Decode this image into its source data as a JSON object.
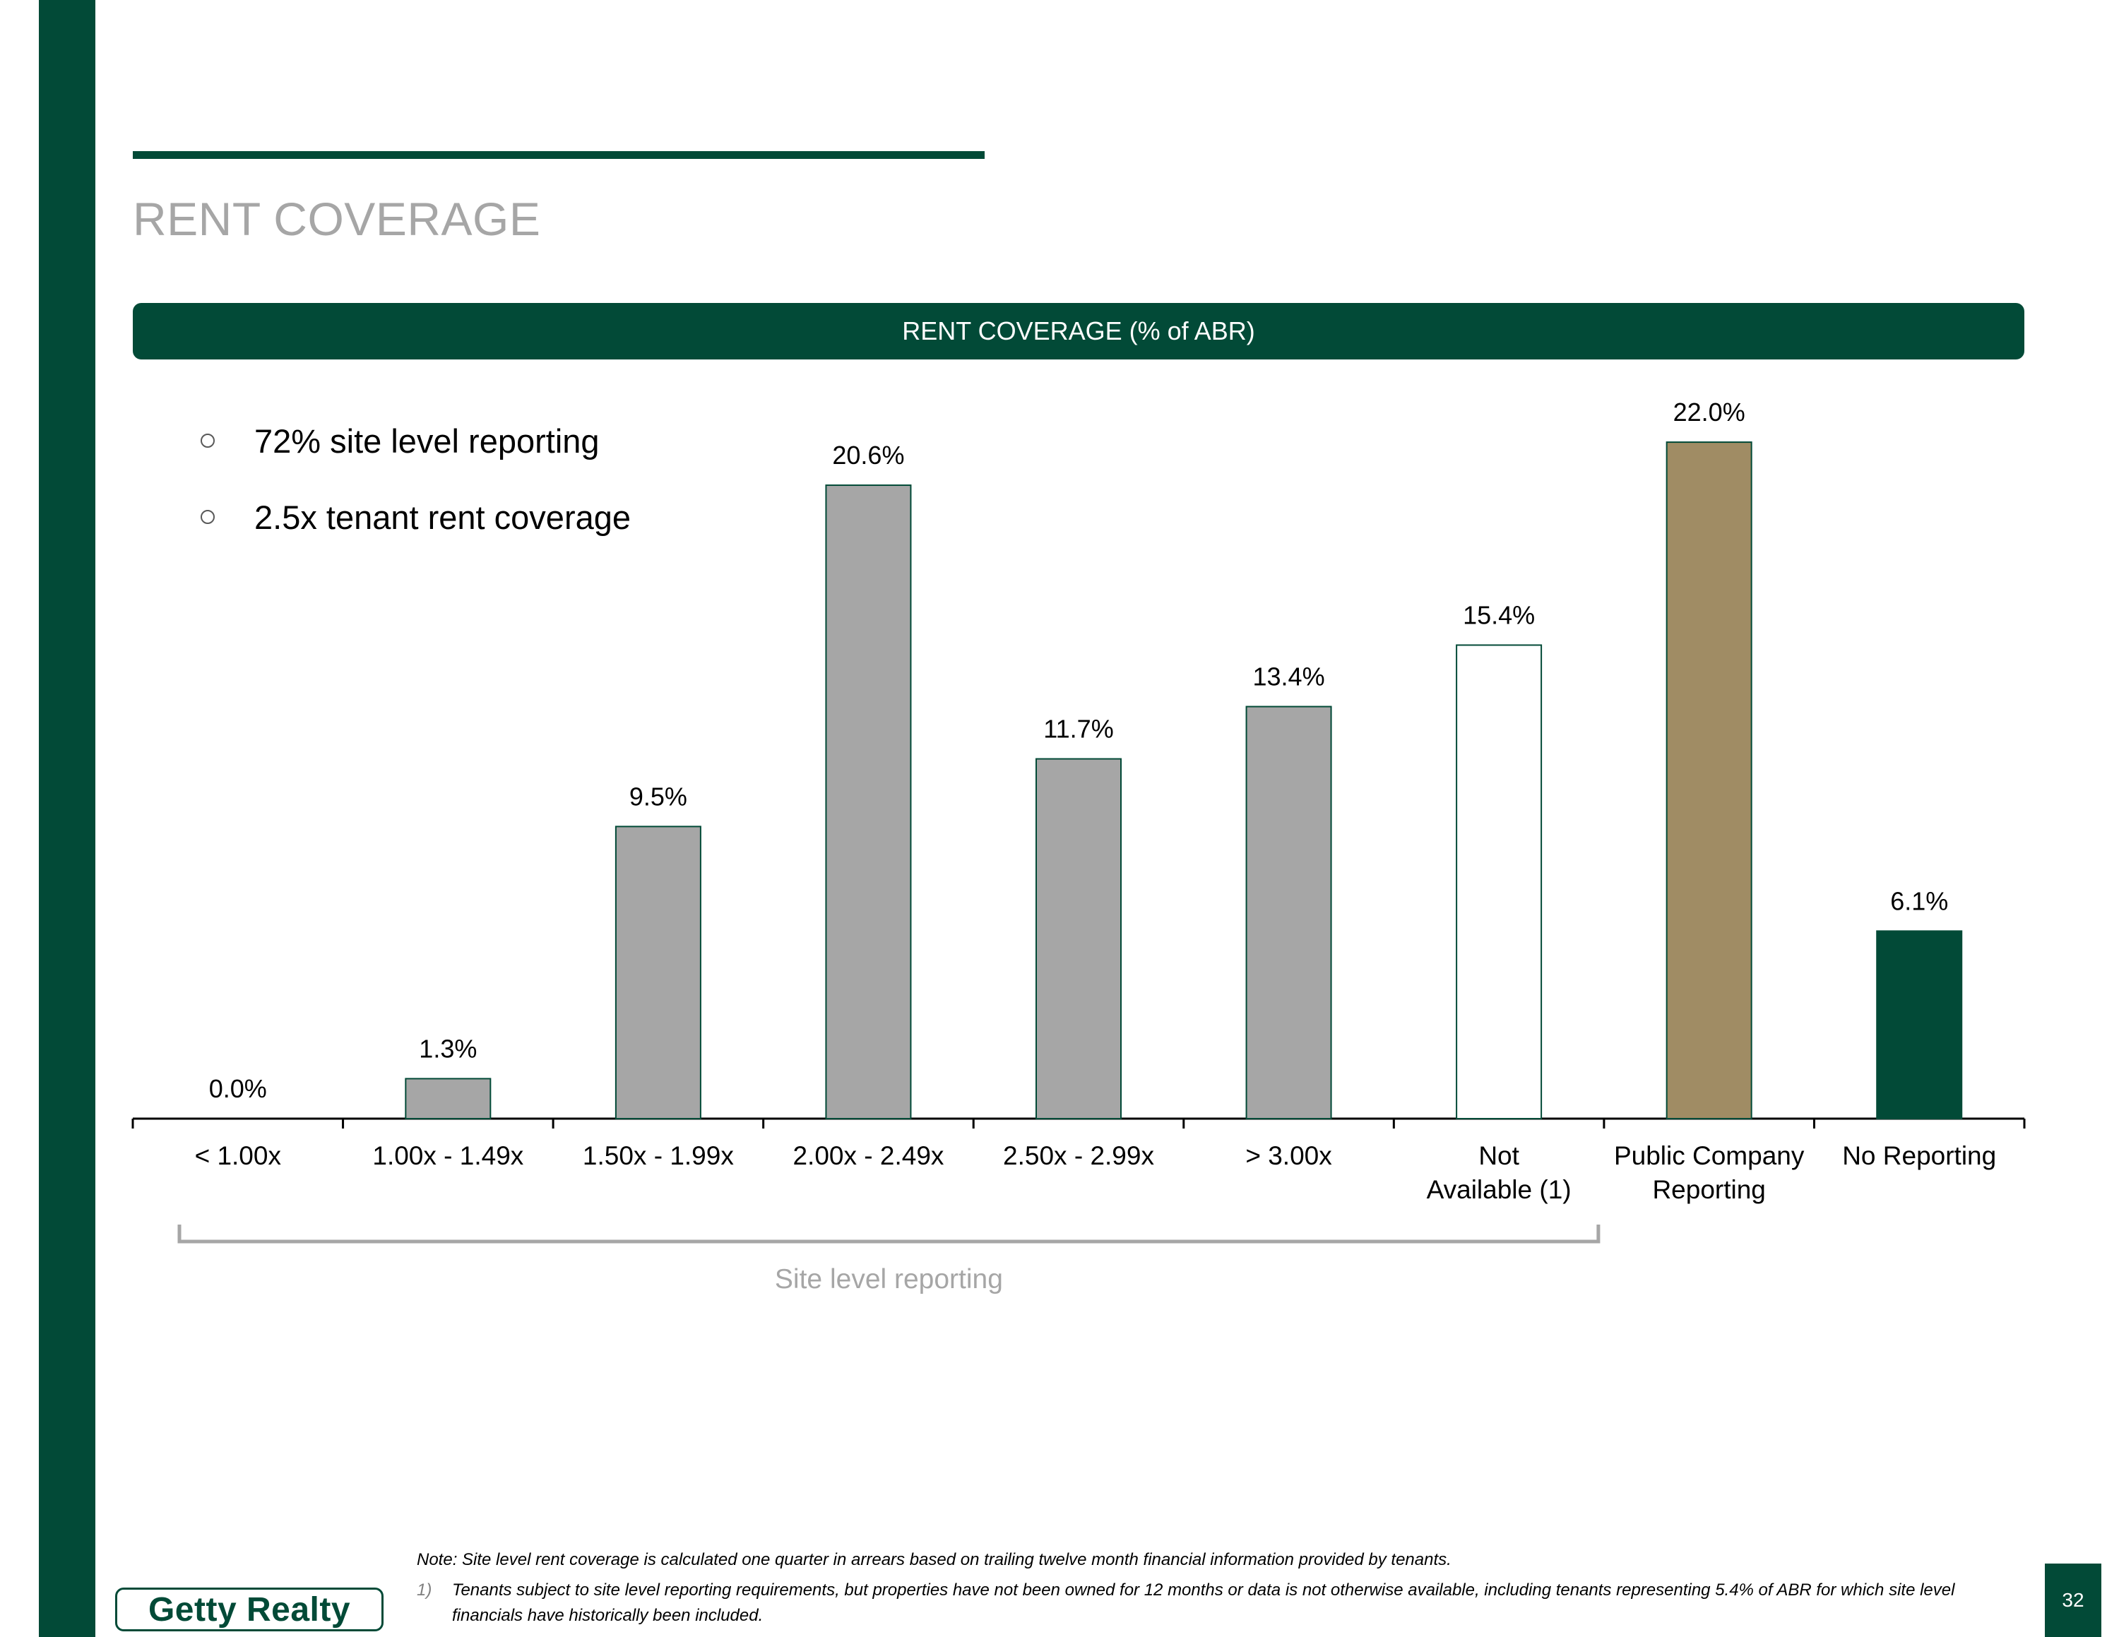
{
  "page": {
    "title": "RENT COVERAGE",
    "banner": "RENT COVERAGE (% of ABR)",
    "bullets": [
      "72% site level reporting",
      "2.5x tenant rent coverage"
    ],
    "note": "Note: Site level rent coverage is calculated one quarter in arrears based on trailing twelve month financial information provided by tenants.",
    "footnote_marker": "1)",
    "footnote": "Tenants subject to site level reporting requirements, but properties have not been owned for 12 months or data is not otherwise available, including tenants representing 5.4% of ABR for which site level financials have historically been included.",
    "logo_text": "Getty Realty",
    "page_number": "32"
  },
  "colors": {
    "brand_green": "#024a37",
    "bar_gray": "#a6a6a6",
    "bar_gold": "#a08c64",
    "bar_outline": "#024a37",
    "title_gray": "#a6a6a6"
  },
  "chart_data": {
    "type": "bar",
    "title": "RENT COVERAGE (% of ABR)",
    "xlabel": "",
    "ylabel": "",
    "unit": "%",
    "ylim": [
      0,
      24
    ],
    "grid": false,
    "categories": [
      [
        "< 1.00x"
      ],
      [
        "1.00x - 1.49x"
      ],
      [
        "1.50x - 1.99x"
      ],
      [
        "2.00x - 2.49x"
      ],
      [
        "2.50x - 2.99x"
      ],
      [
        "> 3.00x"
      ],
      [
        "Not",
        "Available (1)"
      ],
      [
        "Public Company",
        "Reporting"
      ],
      [
        "No Reporting"
      ]
    ],
    "values": [
      0.0,
      1.3,
      9.5,
      20.6,
      11.7,
      13.4,
      15.4,
      22.0,
      6.1
    ],
    "data_labels": [
      "0.0%",
      "1.3%",
      "9.5%",
      "20.6%",
      "11.7%",
      "13.4%",
      "15.4%",
      "22.0%",
      "6.1%"
    ],
    "bar_styles": [
      "gray",
      "gray",
      "gray",
      "gray",
      "gray",
      "gray",
      "white",
      "gold",
      "green"
    ],
    "bracket": {
      "label": "Site level reporting",
      "from_category": 0,
      "to_category": 6
    }
  }
}
